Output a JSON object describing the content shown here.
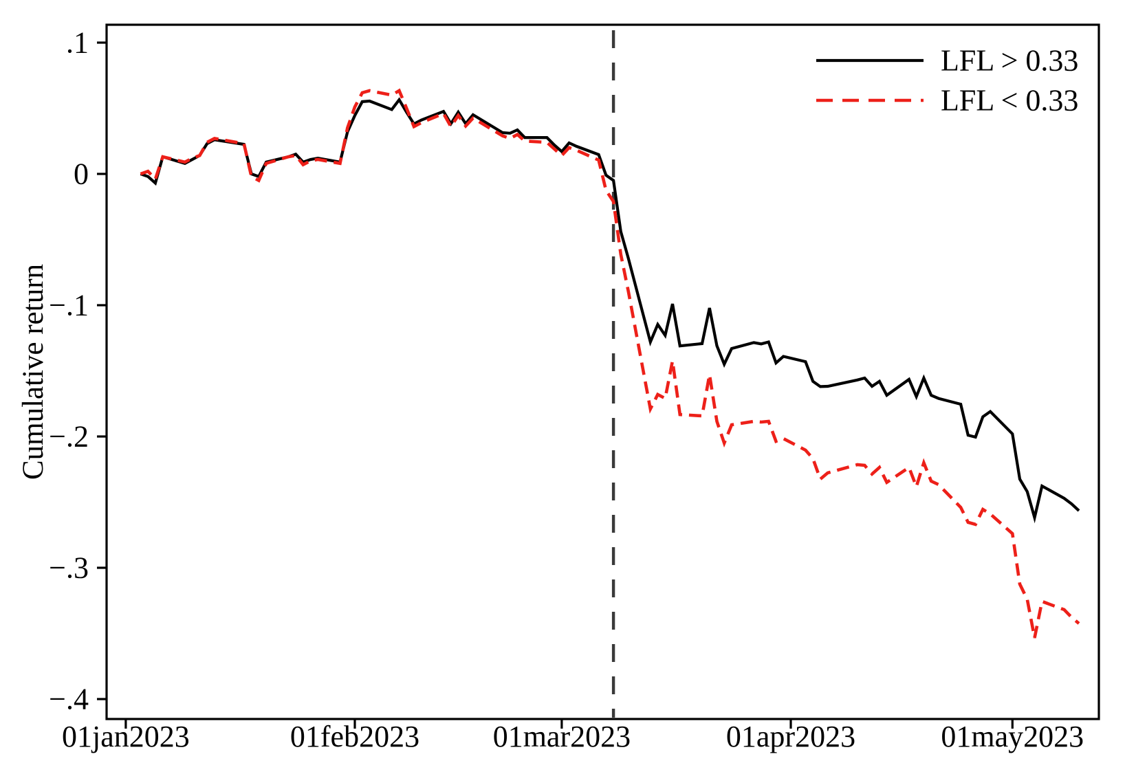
{
  "chart_data": {
    "type": "line",
    "title": "",
    "xlabel": "",
    "ylabel": "Cumulative return",
    "grid": false,
    "legend_position": "top-right-inside",
    "x_axis": {
      "epoch": "2023-01-01",
      "range_days": [
        -2.6,
        131.7
      ],
      "ticks": [
        {
          "date": "2023-01-01",
          "label": "01jan2023"
        },
        {
          "date": "2023-02-01",
          "label": "01feb2023"
        },
        {
          "date": "2023-03-01",
          "label": "01mar2023"
        },
        {
          "date": "2023-04-01",
          "label": "01apr2023"
        },
        {
          "date": "2023-05-01",
          "label": "01may2023"
        }
      ]
    },
    "y_axis": {
      "range": [
        -0.4152,
        0.1136
      ],
      "ticks": [
        {
          "v": 0.1,
          "label": ".1"
        },
        {
          "v": 0,
          "label": "0"
        },
        {
          "v": -0.1,
          "label": "−.1"
        },
        {
          "v": -0.2,
          "label": "−.2"
        },
        {
          "v": -0.3,
          "label": "−.3"
        },
        {
          "v": -0.4,
          "label": "−.4"
        }
      ]
    },
    "event_line": {
      "date": "2023-03-08",
      "color": "#3a3a3a",
      "style": "dashed"
    },
    "series": [
      {
        "name": "LFL > 0.33",
        "color": "#000000",
        "dash": "solid",
        "width": 4.2,
        "points": [
          [
            "2023-01-03",
            0
          ],
          [
            "2023-01-04",
            -0.002
          ],
          [
            "2023-01-05",
            -0.007
          ],
          [
            "2023-01-06",
            0.013
          ],
          [
            "2023-01-09",
            0.008
          ],
          [
            "2023-01-10",
            0.011
          ],
          [
            "2023-01-11",
            0.014
          ],
          [
            "2023-01-12",
            0.023
          ],
          [
            "2023-01-13",
            0.026
          ],
          [
            "2023-01-17",
            0.0225
          ],
          [
            "2023-01-18",
            0
          ],
          [
            "2023-01-19",
            -0.002
          ],
          [
            "2023-01-20",
            0.009
          ],
          [
            "2023-01-23",
            0.013
          ],
          [
            "2023-01-24",
            0.015
          ],
          [
            "2023-01-25",
            0.009
          ],
          [
            "2023-01-26",
            0.011
          ],
          [
            "2023-01-27",
            0.012
          ],
          [
            "2023-01-30",
            0.009
          ],
          [
            "2023-01-31",
            0.032
          ],
          [
            "2023-02-01",
            0.0445
          ],
          [
            "2023-02-02",
            0.055
          ],
          [
            "2023-02-03",
            0.0555
          ],
          [
            "2023-02-06",
            0.049
          ],
          [
            "2023-02-07",
            0.0565
          ],
          [
            "2023-02-08",
            0.047
          ],
          [
            "2023-02-09",
            0.038
          ],
          [
            "2023-02-10",
            0.041
          ],
          [
            "2023-02-13",
            0.0476
          ],
          [
            "2023-02-14",
            0.0382
          ],
          [
            "2023-02-15",
            0.047
          ],
          [
            "2023-02-16",
            0.0382
          ],
          [
            "2023-02-17",
            0.045
          ],
          [
            "2023-02-21",
            0.0314
          ],
          [
            "2023-02-22",
            0.031
          ],
          [
            "2023-02-23",
            0.0335
          ],
          [
            "2023-02-24",
            0.0277
          ],
          [
            "2023-02-27",
            0.0277
          ],
          [
            "2023-02-28",
            0.022
          ],
          [
            "2023-03-01",
            0.017
          ],
          [
            "2023-03-02",
            0.0236
          ],
          [
            "2023-03-03",
            0.021
          ],
          [
            "2023-03-06",
            0.0147
          ],
          [
            "2023-03-07",
            -0.001
          ],
          [
            "2023-03-08",
            -0.005
          ],
          [
            "2023-03-09",
            -0.044
          ],
          [
            "2023-03-10",
            -0.064
          ],
          [
            "2023-03-13",
            -0.128
          ],
          [
            "2023-03-14",
            -0.1147
          ],
          [
            "2023-03-15",
            -0.123
          ],
          [
            "2023-03-16",
            -0.099
          ],
          [
            "2023-03-17",
            -0.131
          ],
          [
            "2023-03-20",
            -0.1293
          ],
          [
            "2023-03-21",
            -0.1021
          ],
          [
            "2023-03-22",
            -0.1309
          ],
          [
            "2023-03-23",
            -0.145
          ],
          [
            "2023-03-24",
            -0.133
          ],
          [
            "2023-03-27",
            -0.1285
          ],
          [
            "2023-03-28",
            -0.1295
          ],
          [
            "2023-03-29",
            -0.128
          ],
          [
            "2023-03-30",
            -0.144
          ],
          [
            "2023-03-31",
            -0.139
          ],
          [
            "2023-04-03",
            -0.143
          ],
          [
            "2023-04-04",
            -0.158
          ],
          [
            "2023-04-05",
            -0.162
          ],
          [
            "2023-04-06",
            -0.1618
          ],
          [
            "2023-04-10",
            -0.157
          ],
          [
            "2023-04-11",
            -0.1555
          ],
          [
            "2023-04-12",
            -0.1618
          ],
          [
            "2023-04-13",
            -0.158
          ],
          [
            "2023-04-14",
            -0.1686
          ],
          [
            "2023-04-17",
            -0.1565
          ],
          [
            "2023-04-18",
            -0.1696
          ],
          [
            "2023-04-19",
            -0.1555
          ],
          [
            "2023-04-20",
            -0.1686
          ],
          [
            "2023-04-21",
            -0.171
          ],
          [
            "2023-04-24",
            -0.1754
          ],
          [
            "2023-04-25",
            -0.199
          ],
          [
            "2023-04-26",
            -0.2005
          ],
          [
            "2023-04-27",
            -0.185
          ],
          [
            "2023-04-28",
            -0.181
          ],
          [
            "2023-05-01",
            -0.198
          ],
          [
            "2023-05-02",
            -0.2325
          ],
          [
            "2023-05-03",
            -0.242
          ],
          [
            "2023-05-04",
            -0.2618
          ],
          [
            "2023-05-05",
            -0.2377
          ],
          [
            "2023-05-08",
            -0.2471
          ],
          [
            "2023-05-09",
            -0.2513
          ],
          [
            "2023-05-10",
            -0.2565
          ]
        ]
      },
      {
        "name": "LFL < 0.33",
        "color": "#ed2019",
        "dash": "dashed",
        "width": 4.6,
        "points": [
          [
            "2023-01-03",
            0
          ],
          [
            "2023-01-04",
            0.002
          ],
          [
            "2023-01-05",
            -0.004
          ],
          [
            "2023-01-06",
            0.013
          ],
          [
            "2023-01-09",
            0.009
          ],
          [
            "2023-01-10",
            0.012
          ],
          [
            "2023-01-11",
            0.014
          ],
          [
            "2023-01-12",
            0.024
          ],
          [
            "2023-01-13",
            0.027
          ],
          [
            "2023-01-17",
            0.023
          ],
          [
            "2023-01-18",
            -0.002
          ],
          [
            "2023-01-19",
            -0.005
          ],
          [
            "2023-01-20",
            0.008
          ],
          [
            "2023-01-23",
            0.013
          ],
          [
            "2023-01-24",
            0.014
          ],
          [
            "2023-01-25",
            0.007
          ],
          [
            "2023-01-26",
            0.01
          ],
          [
            "2023-01-27",
            0.011
          ],
          [
            "2023-01-30",
            0.008
          ],
          [
            "2023-01-31",
            0.035
          ],
          [
            "2023-02-01",
            0.051
          ],
          [
            "2023-02-02",
            0.0618
          ],
          [
            "2023-02-03",
            0.0634
          ],
          [
            "2023-02-06",
            0.06
          ],
          [
            "2023-02-07",
            0.0634
          ],
          [
            "2023-02-08",
            0.05
          ],
          [
            "2023-02-09",
            0.036
          ],
          [
            "2023-02-10",
            0.039
          ],
          [
            "2023-02-13",
            0.046
          ],
          [
            "2023-02-14",
            0.036
          ],
          [
            "2023-02-15",
            0.0445
          ],
          [
            "2023-02-16",
            0.0365
          ],
          [
            "2023-02-17",
            0.0425
          ],
          [
            "2023-02-21",
            0.029
          ],
          [
            "2023-02-22",
            0.027
          ],
          [
            "2023-02-23",
            0.03
          ],
          [
            "2023-02-24",
            0.025
          ],
          [
            "2023-02-27",
            0.024
          ],
          [
            "2023-02-28",
            0.019
          ],
          [
            "2023-03-01",
            0.014
          ],
          [
            "2023-03-02",
            0.02
          ],
          [
            "2023-03-03",
            0.018
          ],
          [
            "2023-03-06",
            0.0105
          ],
          [
            "2023-03-07",
            -0.0126
          ],
          [
            "2023-03-08",
            -0.021
          ],
          [
            "2023-03-09",
            -0.0613
          ],
          [
            "2023-03-10",
            -0.089
          ],
          [
            "2023-03-13",
            -0.179
          ],
          [
            "2023-03-14",
            -0.168
          ],
          [
            "2023-03-15",
            -0.171
          ],
          [
            "2023-03-16",
            -0.1424
          ],
          [
            "2023-03-17",
            -0.1833
          ],
          [
            "2023-03-20",
            -0.1843
          ],
          [
            "2023-03-21",
            -0.1529
          ],
          [
            "2023-03-22",
            -0.1885
          ],
          [
            "2023-03-23",
            -0.205
          ],
          [
            "2023-03-24",
            -0.1911
          ],
          [
            "2023-03-27",
            -0.1885
          ],
          [
            "2023-03-28",
            -0.189
          ],
          [
            "2023-03-29",
            -0.1885
          ],
          [
            "2023-03-30",
            -0.2037
          ],
          [
            "2023-03-31",
            -0.2016
          ],
          [
            "2023-04-03",
            -0.2104
          ],
          [
            "2023-04-04",
            -0.2168
          ],
          [
            "2023-04-05",
            -0.2325
          ],
          [
            "2023-04-06",
            -0.2277
          ],
          [
            "2023-04-10",
            -0.2215
          ],
          [
            "2023-04-11",
            -0.222
          ],
          [
            "2023-04-12",
            -0.2286
          ],
          [
            "2023-04-13",
            -0.2236
          ],
          [
            "2023-04-14",
            -0.235
          ],
          [
            "2023-04-17",
            -0.2236
          ],
          [
            "2023-04-18",
            -0.2382
          ],
          [
            "2023-04-19",
            -0.22
          ],
          [
            "2023-04-20",
            -0.234
          ],
          [
            "2023-04-21",
            -0.2366
          ],
          [
            "2023-04-24",
            -0.254
          ],
          [
            "2023-04-25",
            -0.2654
          ],
          [
            "2023-04-26",
            -0.267
          ],
          [
            "2023-04-27",
            -0.2555
          ],
          [
            "2023-04-28",
            -0.259
          ],
          [
            "2023-05-01",
            -0.274
          ],
          [
            "2023-05-02",
            -0.3125
          ],
          [
            "2023-05-03",
            -0.324
          ],
          [
            "2023-05-04",
            -0.3534
          ],
          [
            "2023-05-05",
            -0.3256
          ],
          [
            "2023-05-08",
            -0.3319
          ],
          [
            "2023-05-09",
            -0.3377
          ],
          [
            "2023-05-10",
            -0.3424
          ]
        ]
      }
    ]
  }
}
